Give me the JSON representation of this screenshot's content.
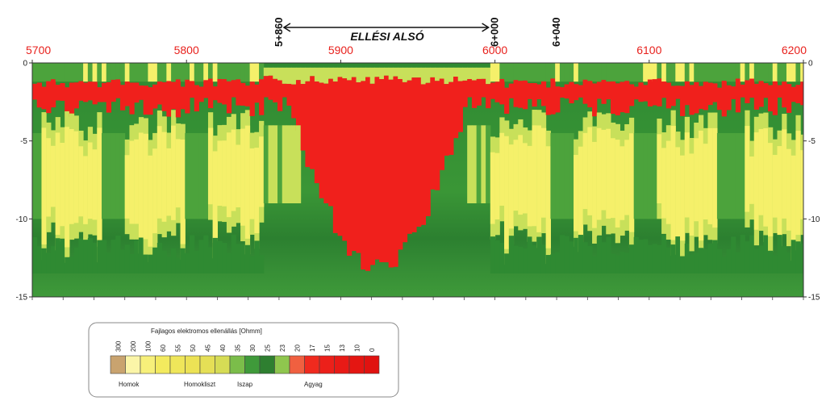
{
  "chart_data": {
    "type": "heatmap",
    "title": "ELLÉSI ALSÓ",
    "x_range": [
      5700,
      6200
    ],
    "x_ticks": [
      "5700",
      "5800",
      "5900",
      "6000",
      "6100",
      "6200"
    ],
    "y_range": [
      0,
      -15
    ],
    "y_ticks": [
      "0",
      "-5",
      "-10",
      "-15"
    ],
    "stations": [
      "5+860",
      "6+000",
      "6+040"
    ],
    "station_values": [
      5860,
      6000,
      6040
    ],
    "section_span": [
      5860,
      6000
    ],
    "zones": [
      {
        "from": 5700,
        "to": 5850,
        "profile": "sand-over-clay"
      },
      {
        "from": 5850,
        "to": 5995,
        "profile": "clay-plume"
      },
      {
        "from": 5995,
        "to": 6200,
        "profile": "sand-over-clay"
      }
    ],
    "colors": {
      "sand": "#f5f06a",
      "silty_sand": "#c8e05a",
      "silt": "#4ca33c",
      "silt_dark": "#2f8a32",
      "clay": "#f0201c"
    },
    "legend": {
      "title": "Fajlagos elektromos ellenállás [Ohmm]",
      "values": [
        "300",
        "200",
        "100",
        "60",
        "55",
        "50",
        "45",
        "40",
        "35",
        "30",
        "25",
        "23",
        "20",
        "17",
        "15",
        "13",
        "10",
        "0"
      ],
      "swatches": [
        "#c9a36f",
        "#fbf5a8",
        "#f7f07a",
        "#f3ea5e",
        "#efe65a",
        "#ece255",
        "#e5df56",
        "#d6dc55",
        "#7bbd4a",
        "#3f9a3a",
        "#2e7f30",
        "#8fc64e",
        "#f06040",
        "#f02a1e",
        "#ec201a",
        "#e81a16",
        "#e41612",
        "#e01210"
      ],
      "categories": [
        "Homok",
        "Homokliszt",
        "Iszap",
        "Agyag"
      ]
    }
  }
}
